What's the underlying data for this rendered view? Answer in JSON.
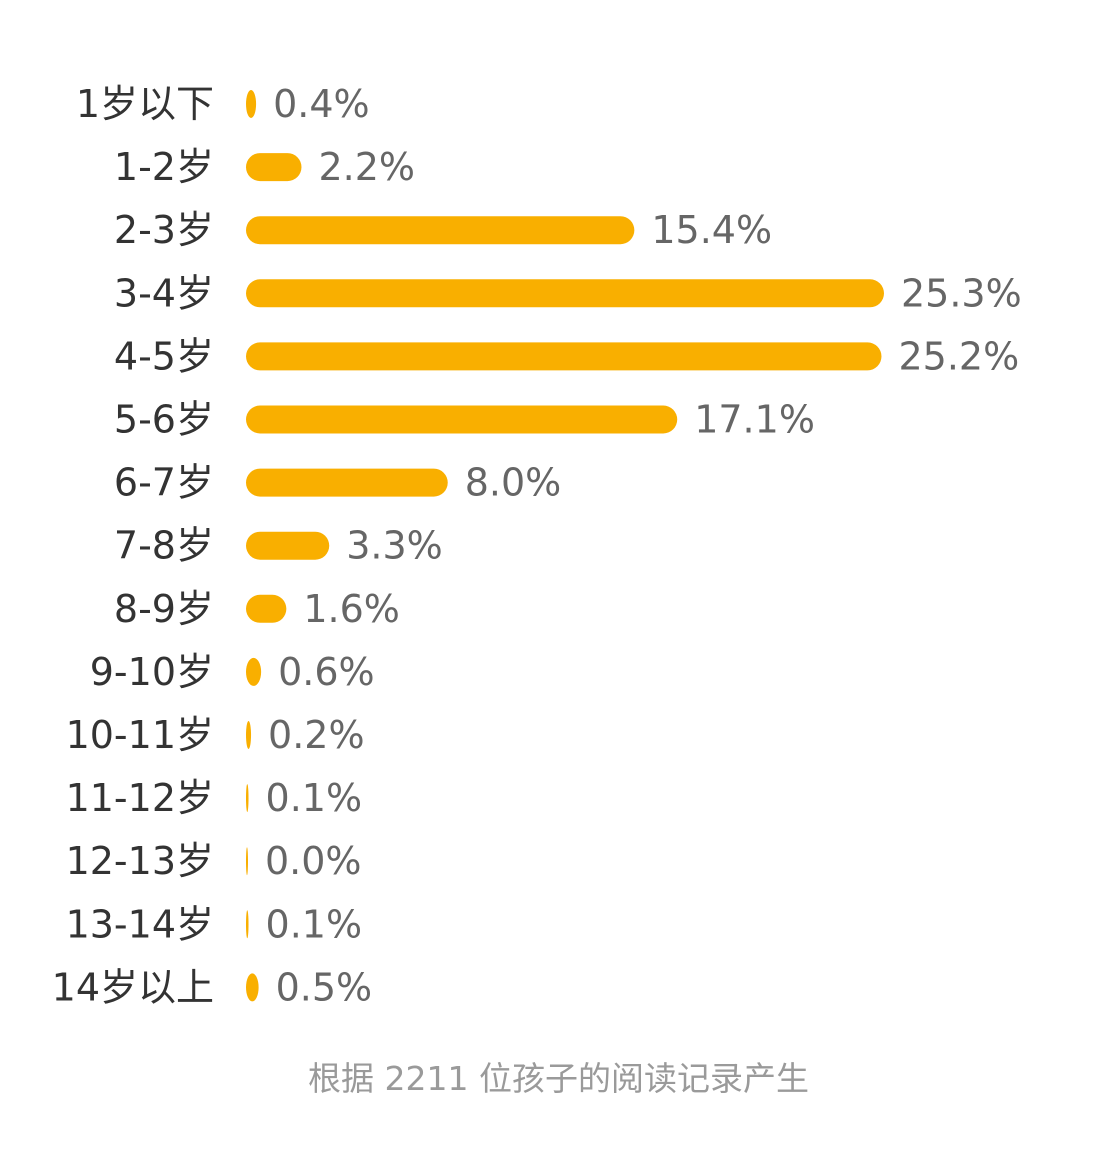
{
  "chart_data": {
    "type": "bar",
    "orientation": "horizontal",
    "categories": [
      "1岁以下",
      "1-2岁",
      "2-3岁",
      "3-4岁",
      "4-5岁",
      "5-6岁",
      "6-7岁",
      "7-8岁",
      "8-9岁",
      "9-10岁",
      "10-11岁",
      "11-12岁",
      "12-13岁",
      "13-14岁",
      "14岁以上"
    ],
    "values": [
      0.4,
      2.2,
      15.4,
      25.3,
      25.2,
      17.1,
      8.0,
      3.3,
      1.6,
      0.6,
      0.2,
      0.1,
      0.0,
      0.1,
      0.5
    ],
    "value_labels": [
      "0.4%",
      "2.2%",
      "15.4%",
      "25.3%",
      "25.2%",
      "17.1%",
      "8.0%",
      "3.3%",
      "1.6%",
      "0.6%",
      "0.2%",
      "0.1%",
      "0.0%",
      "0.1%",
      "0.5%"
    ],
    "bar_color": "#F9AF00",
    "label_color": "#333333",
    "value_label_color": "#666666",
    "xlim": [
      0,
      25.3
    ],
    "grid": false,
    "legend": "none"
  },
  "footer": {
    "note": "根据 2211 位孩子的阅读记录产生"
  }
}
